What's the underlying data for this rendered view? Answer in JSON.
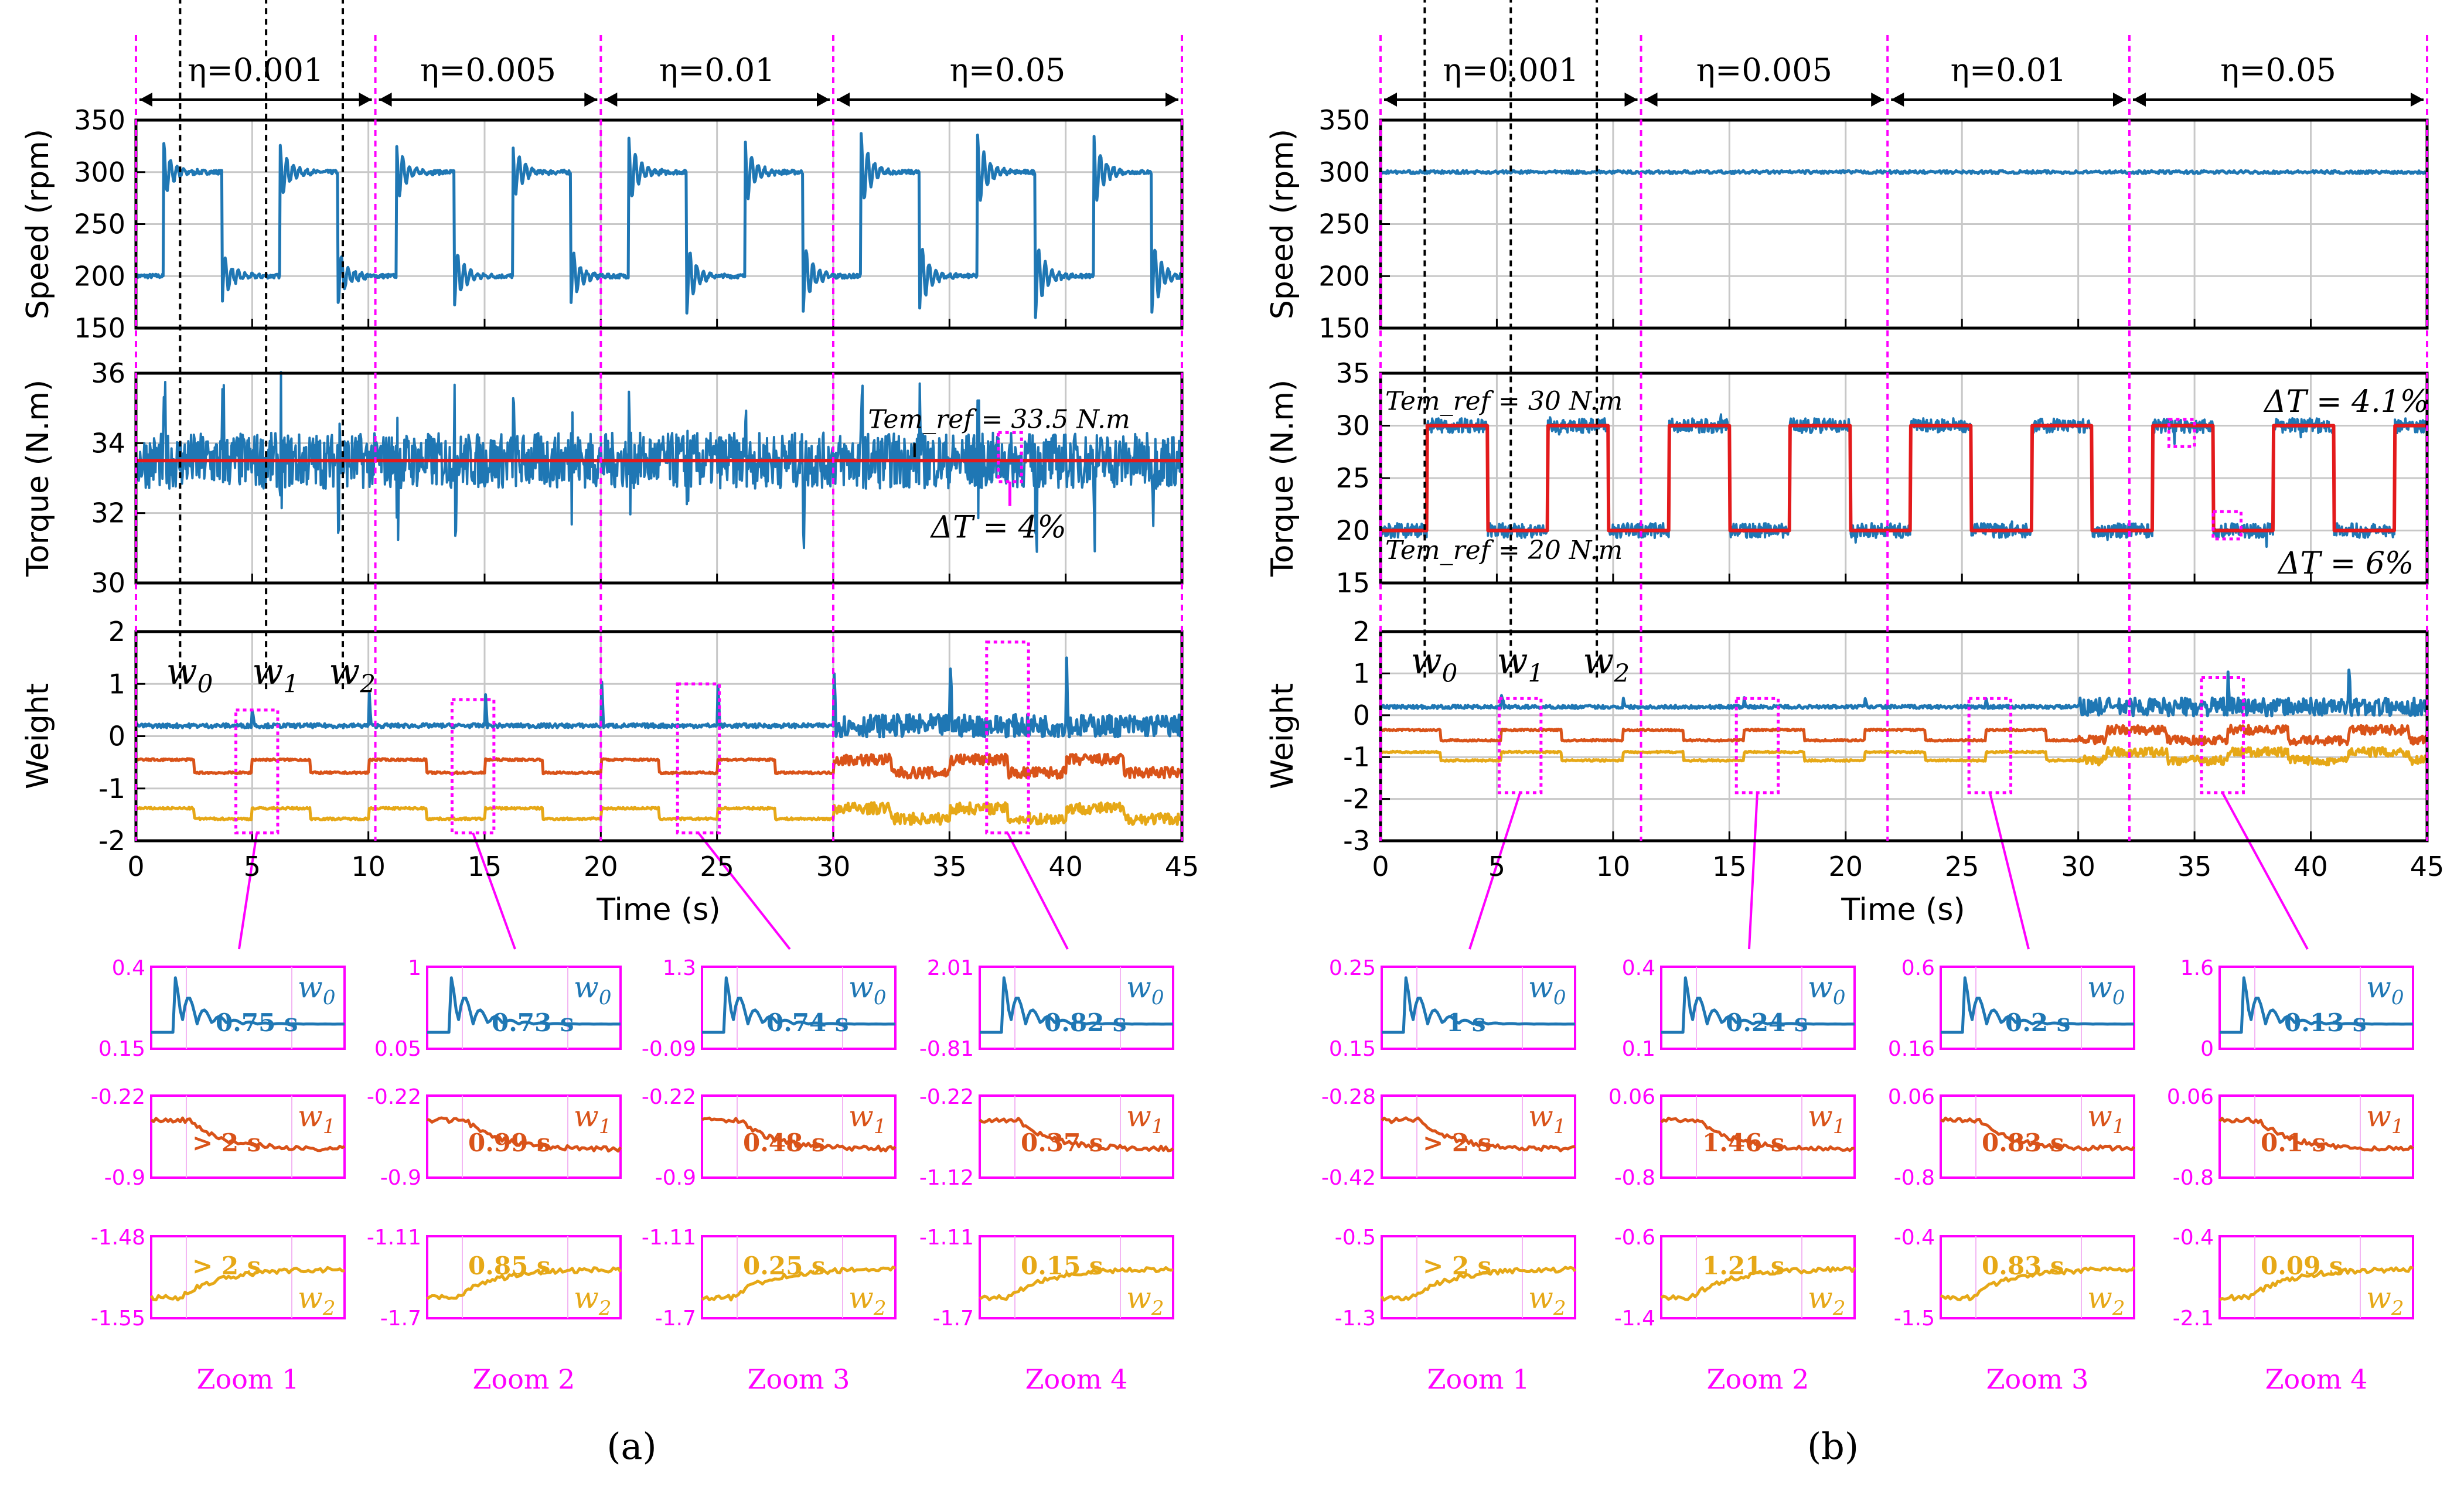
{
  "figure": {
    "panel_a_label": "(a)",
    "panel_b_label": "(b)",
    "time_axis_label": "Time (s)",
    "colors": {
      "w0": "#1f77b4",
      "w1": "#d95319",
      "w2": "#e6a817",
      "reference": "#e31a1c",
      "annotation": "#ff00ff",
      "grid": "#c8c8c8"
    }
  },
  "chart_data": [
    {
      "id": "panel-a",
      "type": "line",
      "label": "(a)",
      "xlabel": "Time (s)",
      "xlim": [
        0,
        45
      ],
      "xticks": [
        "0",
        "5",
        "10",
        "15",
        "20",
        "25",
        "30",
        "35",
        "40",
        "45"
      ],
      "eta_boundaries": [
        0,
        10.3,
        20,
        30,
        45
      ],
      "eta_labels": [
        "η=0.001",
        "η=0.005",
        "η=0.01",
        "η=0.05"
      ],
      "speed": {
        "ylabel": "Speed (rpm)",
        "ylim": [
          150,
          350
        ],
        "yticks": [
          "150",
          "200",
          "250",
          "300",
          "350"
        ],
        "profile": "square",
        "levels": [
          200,
          300
        ],
        "period_s": 5,
        "first_high_s": 1.2
      },
      "torque": {
        "ylabel": "Torque (N.m)",
        "ylim": [
          30,
          36
        ],
        "yticks": [
          "30",
          "32",
          "34",
          "36"
        ],
        "reference_value": 33.5,
        "ref_label": "Tem_ref = 33.5 N.m",
        "delta_label": "ΔT = 4%"
      },
      "weight": {
        "ylabel": "Weight",
        "ylim": [
          -2,
          2
        ],
        "yticks": [
          "-2",
          "-1",
          "0",
          "1",
          "2"
        ],
        "series_names": [
          "w0",
          "w1",
          "w2"
        ],
        "series_baselines": [
          0.2,
          -0.6,
          -1.5
        ]
      },
      "zooms": [
        {
          "label": "Zoom 1",
          "w0": {
            "ymax": "0.4",
            "ymin": "0.15",
            "settle": "0.75 s"
          },
          "w1": {
            "ymax": "-0.22",
            "ymin": "-0.9",
            "settle": "> 2 s"
          },
          "w2": {
            "ymax": "-1.48",
            "ymin": "-1.55",
            "settle": "> 2 s"
          }
        },
        {
          "label": "Zoom 2",
          "w0": {
            "ymax": "1",
            "ymin": "0.05",
            "settle": "0.73 s"
          },
          "w1": {
            "ymax": "-0.22",
            "ymin": "-0.9",
            "settle": "0.99 s"
          },
          "w2": {
            "ymax": "-1.11",
            "ymin": "-1.7",
            "settle": "0.85 s"
          }
        },
        {
          "label": "Zoom 3",
          "w0": {
            "ymax": "1.3",
            "ymin": "-0.09",
            "settle": "0.74 s"
          },
          "w1": {
            "ymax": "-0.22",
            "ymin": "-0.9",
            "settle": "0.48 s"
          },
          "w2": {
            "ymax": "-1.11",
            "ymin": "-1.7",
            "settle": "0.25 s"
          }
        },
        {
          "label": "Zoom 4",
          "w0": {
            "ymax": "2.01",
            "ymin": "-0.81",
            "settle": "0.82 s"
          },
          "w1": {
            "ymax": "-0.22",
            "ymin": "-1.12",
            "settle": "0.37 s"
          },
          "w2": {
            "ymax": "-1.11",
            "ymin": "-1.7",
            "settle": "0.15 s"
          }
        }
      ]
    },
    {
      "id": "panel-b",
      "type": "line",
      "label": "(b)",
      "xlabel": "Time (s)",
      "xlim": [
        0,
        45
      ],
      "xticks": [
        "0",
        "5",
        "10",
        "15",
        "20",
        "25",
        "30",
        "35",
        "40",
        "45"
      ],
      "eta_boundaries": [
        0,
        11.2,
        21.8,
        32.2,
        45
      ],
      "eta_labels": [
        "η=0.001",
        "η=0.005",
        "η=0.01",
        "η=0.05"
      ],
      "speed": {
        "ylabel": "Speed (rpm)",
        "ylim": [
          150,
          350
        ],
        "yticks": [
          "150",
          "200",
          "250",
          "300",
          "350"
        ],
        "profile": "constant",
        "levels": [
          300
        ]
      },
      "torque": {
        "ylabel": "Torque (N.m)",
        "ylim": [
          15,
          35
        ],
        "yticks": [
          "15",
          "20",
          "25",
          "30",
          "35"
        ],
        "profile": "square",
        "levels": [
          20,
          30
        ],
        "period_s": 5.2,
        "ref_high_label": "Tem_ref = 30 N.m",
        "ref_low_label": "Tem_ref = 20 N.m",
        "delta_high_label": "ΔT = 4.1%",
        "delta_low_label": "ΔT = 6%"
      },
      "weight": {
        "ylabel": "Weight",
        "ylim": [
          -3,
          2
        ],
        "yticks": [
          "-3",
          "-2",
          "-1",
          "0",
          "1",
          "2"
        ],
        "series_names": [
          "w0",
          "w1",
          "w2"
        ],
        "series_baselines": [
          0.2,
          -0.5,
          -1.0
        ]
      },
      "zooms": [
        {
          "label": "Zoom 1",
          "w0": {
            "ymax": "0.25",
            "ymin": "0.15",
            "settle": "1 s"
          },
          "w1": {
            "ymax": "-0.28",
            "ymin": "-0.42",
            "settle": "> 2 s"
          },
          "w2": {
            "ymax": "-0.5",
            "ymin": "-1.3",
            "settle": "> 2 s"
          }
        },
        {
          "label": "Zoom 2",
          "w0": {
            "ymax": "0.4",
            "ymin": "0.1",
            "settle": "0.24 s"
          },
          "w1": {
            "ymax": "0.06",
            "ymin": "-0.8",
            "settle": "1.46 s"
          },
          "w2": {
            "ymax": "-0.6",
            "ymin": "-1.4",
            "settle": "1.21 s"
          }
        },
        {
          "label": "Zoom 3",
          "w0": {
            "ymax": "0.6",
            "ymin": "0.16",
            "settle": "0.2 s"
          },
          "w1": {
            "ymax": "0.06",
            "ymin": "-0.8",
            "settle": "0.83 s"
          },
          "w2": {
            "ymax": "-0.4",
            "ymin": "-1.5",
            "settle": "0.83 s"
          }
        },
        {
          "label": "Zoom 4",
          "w0": {
            "ymax": "1.6",
            "ymin": "0",
            "settle": "0.13 s"
          },
          "w1": {
            "ymax": "0.06",
            "ymin": "-0.8",
            "settle": "0.1 s"
          },
          "w2": {
            "ymax": "-0.4",
            "ymin": "-2.1",
            "settle": "0.09 s"
          }
        }
      ]
    }
  ]
}
